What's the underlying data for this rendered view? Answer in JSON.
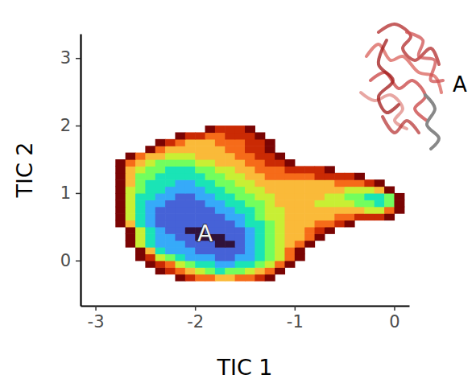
{
  "chart_data": {
    "type": "heatmap",
    "x_label": "TIC 1",
    "y_label": "TIC 2",
    "xlim": [
      -3.15,
      0.15
    ],
    "ylim": [
      -0.67,
      3.36
    ],
    "xticks": [
      -3,
      -2,
      -1,
      0
    ],
    "yticks": [
      0,
      1,
      2,
      3
    ],
    "x": [
      -2.75,
      -2.65,
      -2.55,
      -2.45,
      -2.35,
      -2.25,
      -2.15,
      -2.05,
      -1.95,
      -1.85,
      -1.75,
      -1.65,
      -1.55,
      -1.45,
      -1.35,
      -1.25,
      -1.15,
      -1.05,
      -0.95,
      -0.85,
      -0.75,
      -0.65,
      -0.55,
      -0.45,
      -0.35,
      -0.25,
      -0.15,
      -0.05,
      0.05
    ],
    "y": [
      -0.25,
      -0.15,
      -0.05,
      0.05,
      0.15,
      0.25,
      0.35,
      0.45,
      0.55,
      0.65,
      0.75,
      0.85,
      0.95,
      1.05,
      1.15,
      1.25,
      1.35,
      1.45,
      1.55,
      1.65,
      1.75,
      1.85,
      1.95
    ],
    "values": [
      [
        null,
        null,
        null,
        null,
        null,
        null,
        9,
        8,
        7,
        7,
        6,
        6,
        7,
        7,
        8,
        9,
        null,
        null,
        null,
        null,
        null,
        null,
        null,
        null,
        null,
        null,
        null,
        null,
        null
      ],
      [
        null,
        null,
        null,
        null,
        9,
        8,
        7,
        6,
        5,
        4,
        3,
        4,
        4,
        5,
        6,
        7,
        9,
        null,
        null,
        null,
        null,
        null,
        null,
        null,
        null,
        null,
        null,
        null,
        null
      ],
      [
        null,
        null,
        null,
        9,
        8,
        7,
        5,
        4,
        3,
        3,
        2,
        2,
        3,
        3,
        4,
        5,
        7,
        9,
        null,
        null,
        null,
        null,
        null,
        null,
        null,
        null,
        null,
        null,
        null
      ],
      [
        null,
        null,
        9,
        8,
        5,
        4,
        3,
        2,
        2,
        2,
        1,
        1,
        2,
        2,
        3,
        4,
        5,
        7,
        9,
        null,
        null,
        null,
        null,
        null,
        null,
        null,
        null,
        null,
        null
      ],
      [
        null,
        null,
        9,
        6,
        3,
        2,
        2,
        2,
        1,
        1,
        1,
        1,
        1,
        2,
        3,
        4,
        5,
        7,
        9,
        null,
        null,
        null,
        null,
        null,
        null,
        null,
        null,
        null,
        null
      ],
      [
        null,
        9,
        5,
        3,
        2,
        2,
        2,
        1,
        1,
        1,
        0,
        0,
        1,
        2,
        3,
        4,
        5,
        6,
        7,
        9,
        null,
        null,
        null,
        null,
        null,
        null,
        null,
        null,
        null
      ],
      [
        null,
        9,
        5,
        3,
        2,
        2,
        1,
        1,
        0,
        0,
        0,
        1,
        1,
        2,
        3,
        4,
        5,
        6,
        6,
        7,
        9,
        null,
        null,
        null,
        null,
        null,
        null,
        null,
        null
      ],
      [
        null,
        9,
        5,
        3,
        2,
        1,
        1,
        0,
        0,
        1,
        1,
        1,
        1,
        2,
        3,
        4,
        5,
        6,
        6,
        7,
        8,
        9,
        null,
        null,
        null,
        null,
        null,
        null,
        null
      ],
      [
        9,
        6,
        3,
        2,
        1,
        1,
        1,
        1,
        1,
        1,
        1,
        1,
        2,
        3,
        3,
        4,
        5,
        6,
        6,
        6,
        7,
        7,
        8,
        9,
        null,
        null,
        null,
        null,
        null
      ],
      [
        9,
        5,
        3,
        2,
        1,
        1,
        1,
        1,
        1,
        1,
        1,
        2,
        2,
        3,
        4,
        5,
        5,
        6,
        6,
        6,
        6,
        6,
        7,
        7,
        8,
        8,
        8,
        9,
        null
      ],
      [
        9,
        5,
        3,
        2,
        1,
        1,
        1,
        1,
        1,
        1,
        2,
        2,
        3,
        3,
        4,
        5,
        5,
        6,
        6,
        6,
        6,
        6,
        6,
        6,
        6,
        5,
        5,
        7,
        9
      ],
      [
        9,
        5,
        3,
        2,
        2,
        1,
        1,
        1,
        1,
        2,
        2,
        3,
        3,
        4,
        4,
        5,
        6,
        6,
        6,
        6,
        5,
        5,
        5,
        5,
        4,
        4,
        3,
        4,
        9
      ],
      [
        9,
        5,
        3,
        3,
        2,
        2,
        1,
        1,
        2,
        2,
        3,
        3,
        4,
        4,
        5,
        5,
        6,
        6,
        6,
        6,
        6,
        5,
        5,
        4,
        4,
        3,
        3,
        4,
        9
      ],
      [
        9,
        5,
        4,
        3,
        3,
        2,
        2,
        2,
        2,
        3,
        3,
        4,
        4,
        5,
        5,
        6,
        6,
        6,
        6,
        6,
        6,
        6,
        6,
        5,
        5,
        5,
        6,
        9,
        null
      ],
      [
        9,
        6,
        4,
        3,
        3,
        3,
        2,
        2,
        3,
        3,
        4,
        4,
        5,
        5,
        6,
        6,
        6,
        6,
        6,
        6,
        6,
        6,
        7,
        7,
        7,
        8,
        9,
        null,
        null
      ],
      [
        9,
        6,
        4,
        4,
        3,
        3,
        3,
        3,
        3,
        4,
        4,
        5,
        5,
        6,
        6,
        7,
        7,
        7,
        7,
        7,
        8,
        8,
        8,
        8,
        9,
        null,
        null,
        null,
        null
      ],
      [
        9,
        6,
        5,
        4,
        4,
        3,
        3,
        3,
        4,
        4,
        5,
        5,
        6,
        6,
        7,
        7,
        7,
        8,
        8,
        8,
        8,
        9,
        null,
        null,
        null,
        null,
        null,
        null,
        null
      ],
      [
        9,
        7,
        6,
        5,
        4,
        4,
        4,
        4,
        5,
        5,
        6,
        6,
        6,
        7,
        7,
        8,
        8,
        9,
        null,
        null,
        null,
        null,
        null,
        null,
        null,
        null,
        null,
        null,
        null
      ],
      [
        null,
        9,
        7,
        6,
        6,
        5,
        5,
        5,
        6,
        6,
        6,
        6,
        7,
        7,
        8,
        8,
        9,
        null,
        null,
        null,
        null,
        null,
        null,
        null,
        null,
        null,
        null,
        null,
        null
      ],
      [
        null,
        null,
        null,
        9,
        7,
        6,
        6,
        6,
        6,
        6,
        6,
        7,
        7,
        8,
        8,
        9,
        null,
        null,
        null,
        null,
        null,
        null,
        null,
        null,
        null,
        null,
        null,
        null,
        null
      ],
      [
        null,
        null,
        null,
        null,
        9,
        8,
        7,
        6,
        6,
        6,
        7,
        7,
        7,
        8,
        8,
        9,
        null,
        null,
        null,
        null,
        null,
        null,
        null,
        null,
        null,
        null,
        null,
        null,
        null
      ],
      [
        null,
        null,
        null,
        null,
        null,
        null,
        9,
        8,
        8,
        7,
        7,
        8,
        8,
        8,
        9,
        null,
        null,
        null,
        null,
        null,
        null,
        null,
        null,
        null,
        null,
        null,
        null,
        null,
        null
      ],
      [
        null,
        null,
        null,
        null,
        null,
        null,
        null,
        null,
        null,
        9,
        8,
        8,
        8,
        9,
        null,
        null,
        null,
        null,
        null,
        null,
        null,
        null,
        null,
        null,
        null,
        null,
        null,
        null,
        null
      ]
    ],
    "zlim": [
      0,
      9
    ],
    "colors": [
      "#30123b",
      "#4662d7",
      "#36aaf9",
      "#1ae4b6",
      "#72fe5e",
      "#c8ef34",
      "#faba39",
      "#f66b19",
      "#ca2a04",
      "#7a0403"
    ],
    "annotations": [
      {
        "text": "A",
        "x": -1.9,
        "y": 0.38
      },
      {
        "text": "A"
      }
    ]
  }
}
